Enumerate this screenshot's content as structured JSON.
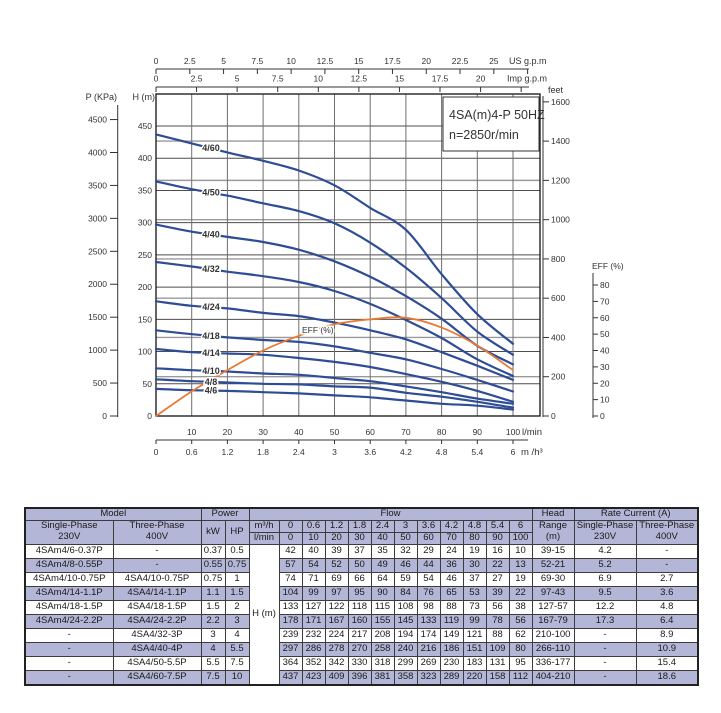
{
  "page": {
    "background": "#ffffff"
  },
  "chart": {
    "title": "4SA(m)4-P 50HZ",
    "subtitle": "n=2850r/min",
    "eff_curve_label": "EFF (%)",
    "axis_labels": {
      "us_gpm": "US g.p.m",
      "imp_gpm": "Imp g.p.m",
      "p_kpa": "P (KPa)",
      "h_m": "H (m)",
      "feet": "feet",
      "lmin": "l/min",
      "m3h": "m /h³",
      "eff": "EFF (%)"
    },
    "colors": {
      "curve": "#2e4d95",
      "eff_curve": "#e87a33",
      "grid_vertical": "#6e6e6e",
      "grid_h": "#4d4d4d",
      "grid_feet": "#9a9a9a",
      "plot_border": "#222222",
      "text": "#333333",
      "curve_label_text": "#1c1c1c"
    }
  },
  "chart_data": {
    "type": "line",
    "title": "4SA(m)4-P 50HZ",
    "subtitle": "n=2850r/min",
    "xlabel": "l/min",
    "ylabel": "H (m)",
    "grid": true,
    "x_lmin": [
      0,
      10,
      20,
      30,
      40,
      50,
      60,
      70,
      80,
      90,
      100
    ],
    "x_m3h": [
      "0",
      "0.6",
      "1.2",
      "1.8",
      "2.4",
      "3",
      "3.6",
      "4.2",
      "4.8",
      "5.4",
      "6"
    ],
    "axis_ticks": {
      "us_gpm": [
        "0",
        "2.5",
        "5",
        "7.5",
        "10",
        "12.5",
        "15",
        "17.5",
        "20",
        "22.5",
        "25"
      ],
      "imp_gpm": [
        "0",
        "2.5",
        "5",
        "7.5",
        "10",
        "12.5",
        "15",
        "17.5",
        "20"
      ],
      "p_kpa": [
        0,
        500,
        1000,
        1500,
        2000,
        2500,
        3000,
        3500,
        4000,
        4500
      ],
      "h_m": [
        0,
        50,
        100,
        150,
        200,
        250,
        300,
        350,
        400,
        450
      ],
      "feet": [
        0,
        200,
        400,
        600,
        800,
        1000,
        1200,
        1400,
        1600
      ],
      "eff_percent": [
        0,
        10,
        20,
        30,
        40,
        50,
        60,
        70,
        80
      ],
      "lmin": [
        10,
        20,
        30,
        40,
        50,
        60,
        70,
        80,
        90,
        100
      ],
      "m3h": [
        "0",
        "0.6",
        "1.2",
        "1.8",
        "2.4",
        "3",
        "3.6",
        "4.2",
        "4.8",
        "5.4",
        "6"
      ]
    },
    "series": [
      {
        "name": "4/60",
        "values": [
          437,
          423,
          409,
          396,
          381,
          358,
          323,
          289,
          220,
          158,
          112
        ]
      },
      {
        "name": "4/50",
        "values": [
          364,
          352,
          342,
          330,
          318,
          299,
          269,
          230,
          183,
          131,
          95
        ]
      },
      {
        "name": "4/40",
        "values": [
          297,
          286,
          278,
          270,
          258,
          240,
          216,
          186,
          151,
          109,
          80
        ]
      },
      {
        "name": "4/32",
        "values": [
          239,
          232,
          224,
          217,
          208,
          194,
          174,
          149,
          121,
          88,
          62
        ]
      },
      {
        "name": "4/24",
        "values": [
          178,
          171,
          167,
          160,
          155,
          145,
          133,
          119,
          99,
          78,
          56
        ]
      },
      {
        "name": "4/18",
        "values": [
          133,
          127,
          122,
          118,
          115,
          108,
          98,
          88,
          73,
          56,
          38
        ]
      },
      {
        "name": "4/14",
        "values": [
          104,
          99,
          97,
          95,
          90,
          84,
          76,
          65,
          53,
          39,
          22
        ]
      },
      {
        "name": "4/10",
        "values": [
          74,
          71,
          69,
          66,
          64,
          59,
          54,
          46,
          37,
          27,
          19
        ]
      },
      {
        "name": "4/8",
        "values": [
          57,
          54,
          52,
          50,
          49,
          46,
          44,
          36,
          30,
          22,
          13
        ]
      },
      {
        "name": "4/6",
        "values": [
          42,
          40,
          39,
          37,
          35,
          32,
          29,
          24,
          19,
          16,
          10
        ]
      }
    ],
    "efficiency_series": {
      "name": "EFF (%)",
      "x_lmin": [
        0,
        10,
        20,
        30,
        40,
        50,
        60,
        70,
        80,
        90,
        100
      ],
      "values_percent": [
        0,
        15,
        28,
        40,
        49,
        56,
        59,
        60,
        54,
        43,
        28
      ]
    }
  },
  "table": {
    "groups": {
      "model": "Model",
      "power": "Power",
      "flow": "Flow",
      "head": "Head",
      "rate_current": "Rate Current (A)"
    },
    "subs": {
      "single_phase": "Single-Phase\n230V",
      "three_phase": "Three-Phase\n400V",
      "kw": "kW",
      "hp": "HP",
      "m3h": "m³/h",
      "lmin": "l/min",
      "range": "Range\n(m)",
      "rc_single": "Single-Phase\n230V",
      "rc_three": "Three-Phase\n400V",
      "h_unit": "H (m)"
    },
    "flow_m3h": [
      "0",
      "0.6",
      "1.2",
      "1.8",
      "2.4",
      "3",
      "3.6",
      "4.2",
      "4.8",
      "5.4",
      "6"
    ],
    "flow_lmin": [
      "0",
      "10",
      "20",
      "30",
      "40",
      "50",
      "60",
      "70",
      "80",
      "90",
      "100"
    ],
    "rows": [
      {
        "model_1ph": "4SAm4/6-0.37P",
        "model_3ph": "-",
        "kw": "0.37",
        "hp": "0.5",
        "heads": [
          "42",
          "40",
          "39",
          "37",
          "35",
          "32",
          "29",
          "24",
          "19",
          "16",
          "10"
        ],
        "head_range": "39-15",
        "amp_1ph": "4.2",
        "amp_3ph": "-"
      },
      {
        "model_1ph": "4SAm4/8-0.55P",
        "model_3ph": "-",
        "kw": "0.55",
        "hp": "0.75",
        "heads": [
          "57",
          "54",
          "52",
          "50",
          "49",
          "46",
          "44",
          "36",
          "30",
          "22",
          "13"
        ],
        "head_range": "52-21",
        "amp_1ph": "5.2",
        "amp_3ph": "-"
      },
      {
        "model_1ph": "4SAm4/10-0.75P",
        "model_3ph": "4SA4/10-0.75P",
        "kw": "0.75",
        "hp": "1",
        "heads": [
          "74",
          "71",
          "69",
          "66",
          "64",
          "59",
          "54",
          "46",
          "37",
          "27",
          "19"
        ],
        "head_range": "69-30",
        "amp_1ph": "6.9",
        "amp_3ph": "2.7"
      },
      {
        "model_1ph": "4SAm4/14-1.1P",
        "model_3ph": "4SA4/14-1.1P",
        "kw": "1.1",
        "hp": "1.5",
        "heads": [
          "104",
          "99",
          "97",
          "95",
          "90",
          "84",
          "76",
          "65",
          "53",
          "39",
          "22"
        ],
        "head_range": "97-43",
        "amp_1ph": "9.5",
        "amp_3ph": "3.6"
      },
      {
        "model_1ph": "4SAm4/18-1.5P",
        "model_3ph": "4SA4/18-1.5P",
        "kw": "1.5",
        "hp": "2",
        "heads": [
          "133",
          "127",
          "122",
          "118",
          "115",
          "108",
          "98",
          "88",
          "73",
          "56",
          "38"
        ],
        "head_range": "127-57",
        "amp_1ph": "12.2",
        "amp_3ph": "4.8"
      },
      {
        "model_1ph": "4SAm4/24-2.2P",
        "model_3ph": "4SA4/24-2.2P",
        "kw": "2.2",
        "hp": "3",
        "heads": [
          "178",
          "171",
          "167",
          "160",
          "155",
          "145",
          "133",
          "119",
          "99",
          "78",
          "56"
        ],
        "head_range": "167-79",
        "amp_1ph": "17.3",
        "amp_3ph": "6.4"
      },
      {
        "model_1ph": "-",
        "model_3ph": "4SA4/32-3P",
        "kw": "3",
        "hp": "4",
        "heads": [
          "239",
          "232",
          "224",
          "217",
          "208",
          "194",
          "174",
          "149",
          "121",
          "88",
          "62"
        ],
        "head_range": "210-100",
        "amp_1ph": "-",
        "amp_3ph": "8.9"
      },
      {
        "model_1ph": "-",
        "model_3ph": "4SA4/40-4P",
        "kw": "4",
        "hp": "5.5",
        "heads": [
          "297",
          "286",
          "278",
          "270",
          "258",
          "240",
          "216",
          "186",
          "151",
          "109",
          "80"
        ],
        "head_range": "266-110",
        "amp_1ph": "-",
        "amp_3ph": "10.9"
      },
      {
        "model_1ph": "-",
        "model_3ph": "4SA4/50-5.5P",
        "kw": "5.5",
        "hp": "7.5",
        "heads": [
          "364",
          "352",
          "342",
          "330",
          "318",
          "299",
          "269",
          "230",
          "183",
          "131",
          "95"
        ],
        "head_range": "336-177",
        "amp_1ph": "-",
        "amp_3ph": "15.4"
      },
      {
        "model_1ph": "-",
        "model_3ph": "4SA4/60-7.5P",
        "kw": "7.5",
        "hp": "10",
        "heads": [
          "437",
          "423",
          "409",
          "396",
          "381",
          "358",
          "323",
          "289",
          "220",
          "158",
          "112"
        ],
        "head_range": "404-210",
        "amp_1ph": "-",
        "amp_3ph": "18.6"
      }
    ]
  }
}
